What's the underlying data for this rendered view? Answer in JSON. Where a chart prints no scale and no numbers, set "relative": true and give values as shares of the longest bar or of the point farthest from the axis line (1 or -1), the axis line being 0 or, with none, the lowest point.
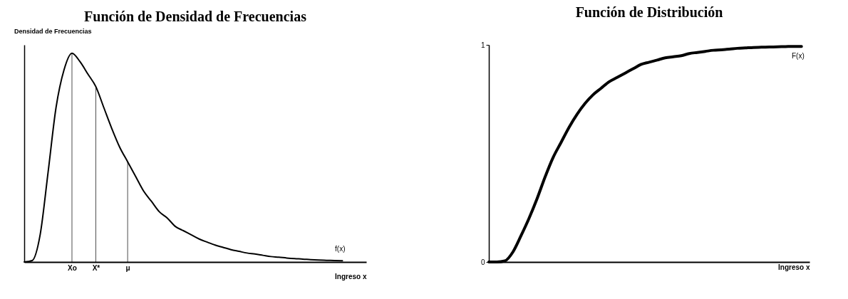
{
  "chart_data": [
    {
      "type": "line",
      "title": "Función de Densidad de Frecuencias",
      "ylabel": "Densidad de Frecuencias",
      "xlabel": "Ingreso x",
      "relative": true,
      "categories": [
        null,
        null,
        null,
        null,
        null,
        null,
        "Xo",
        null,
        null,
        "X*",
        null,
        null,
        null,
        "μ",
        null,
        null,
        null,
        null,
        null,
        null,
        null,
        null,
        null,
        null,
        null,
        null,
        null,
        null,
        null,
        null,
        null,
        null,
        null,
        null,
        null,
        null,
        null,
        null,
        null,
        null,
        null,
        null,
        null,
        null
      ],
      "series": [
        {
          "name": "f(x)",
          "color": "#000000",
          "values": [
            0,
            0.007,
            0.13,
            0.43,
            0.74,
            0.92,
            1.0,
            0.96,
            0.9,
            0.84,
            0.74,
            0.64,
            0.55,
            0.48,
            0.41,
            0.34,
            0.29,
            0.24,
            0.21,
            0.17,
            0.15,
            0.13,
            0.11,
            0.095,
            0.081,
            0.07,
            0.059,
            0.051,
            0.043,
            0.038,
            0.032,
            0.026,
            0.023,
            0.019,
            0.016,
            0.014,
            0.011,
            0.009,
            0.008,
            0.007,
            0.006,
            null,
            null,
            null
          ]
        }
      ],
      "ref_lines": [
        {
          "axis": "x",
          "value": "Xo"
        },
        {
          "axis": "x",
          "value": "X*"
        },
        {
          "axis": "x",
          "value": "μ"
        }
      ]
    },
    {
      "type": "line",
      "title": "Función de Distribución",
      "xlabel": "Ingreso x",
      "ylim": [
        0,
        1
      ],
      "yticks": [
        0,
        1
      ],
      "tick_labels": "y",
      "categories": [
        null,
        null,
        null,
        null,
        null,
        null,
        null,
        null,
        null,
        null,
        null,
        null,
        null,
        null,
        null,
        null,
        null,
        null,
        null,
        null,
        null,
        null,
        null,
        null,
        null,
        null,
        null,
        null,
        null,
        null,
        null,
        null,
        null,
        null,
        null,
        null,
        null,
        null,
        null,
        null,
        null
      ],
      "series": [
        {
          "name": "F(x)",
          "color": "#000000",
          "values": [
            0,
            0,
            0.005,
            0.046,
            0.12,
            0.2,
            0.29,
            0.39,
            0.48,
            0.55,
            0.62,
            0.68,
            0.73,
            0.77,
            0.8,
            0.83,
            0.85,
            0.87,
            0.89,
            0.91,
            0.92,
            0.93,
            0.94,
            0.945,
            0.95,
            0.96,
            0.965,
            0.97,
            0.975,
            0.977,
            0.98,
            0.984,
            0.986,
            0.988,
            0.989,
            0.99,
            0.991,
            0.992,
            0.993,
            0.993,
            null
          ]
        }
      ]
    }
  ]
}
